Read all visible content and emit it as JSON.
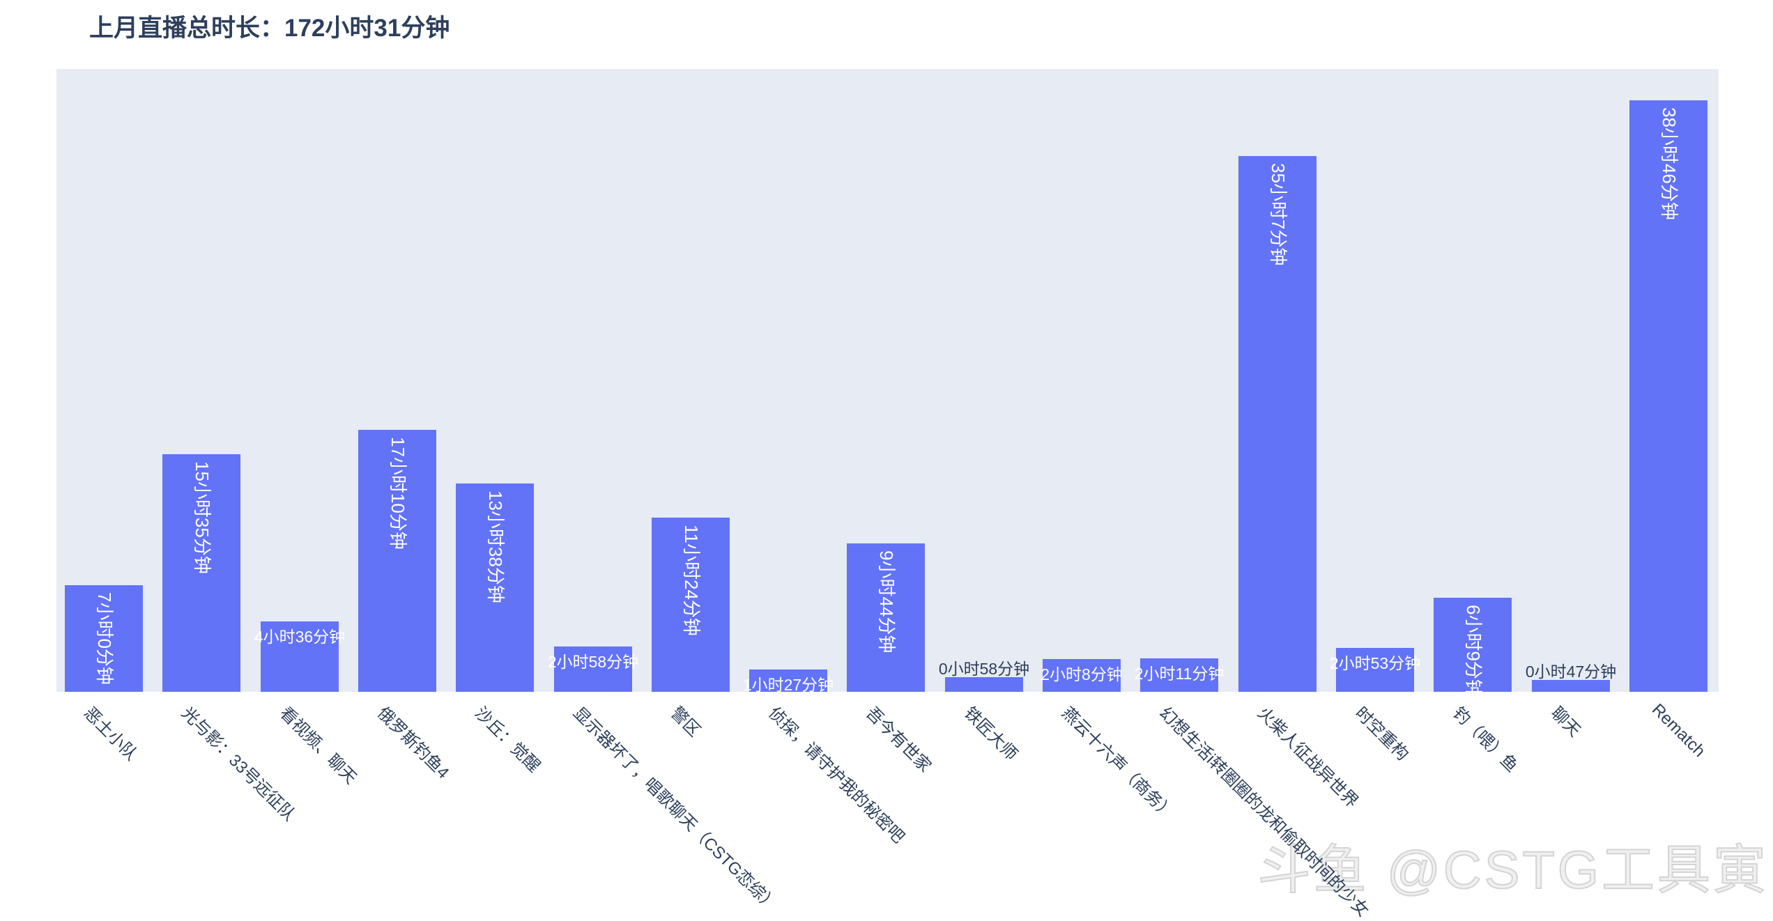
{
  "chart_data": {
    "type": "bar",
    "title": "上月直播总时长：172小时31分钟",
    "categories": [
      "恶土小队",
      "光与影：33号远征队",
      "看视频、聊天",
      "俄罗斯钓鱼4",
      "沙丘：觉醒",
      "显示器坏了，唱歌聊天（CSTG恋综）",
      "警区",
      "侦探，请守护我的秘密吧",
      "吾今有世家",
      "铁匠大师",
      "燕云十六声（商务）",
      "幻想生活i转圈圈的龙和偷取时间的少女",
      "火柴人征战异世界",
      "时空重构",
      "钓（喂）鱼",
      "聊天",
      "Rematch"
    ],
    "values": [
      7.0,
      15.583,
      4.6,
      17.167,
      13.633,
      2.967,
      11.4,
      1.45,
      9.733,
      0.967,
      2.133,
      2.183,
      35.117,
      2.883,
      6.15,
      0.783,
      38.767
    ],
    "value_labels": [
      "7小时0分钟",
      "15小时35分钟",
      "4小时36分钟",
      "17小时10分钟",
      "13小时38分钟",
      "2小时58分钟",
      "11小时24分钟",
      "1小时27分钟",
      "9小时44分钟",
      "0小时58分钟",
      "2小时8分钟",
      "2小时11分钟",
      "35小时7分钟",
      "2小时53分钟",
      "6小时9分钟",
      "0小时47分钟",
      "38小时46分钟"
    ],
    "label_placement": [
      "vertical",
      "vertical",
      "inside",
      "vertical",
      "vertical",
      "inside",
      "vertical",
      "inside",
      "vertical",
      "above",
      "inside",
      "inside",
      "vertical",
      "inside",
      "vertical",
      "above",
      "vertical"
    ],
    "unit": "hours",
    "xlabel": "",
    "ylabel": "",
    "ylim": [
      0,
      40.8
    ],
    "grid": false,
    "legend": null,
    "bar_color": "#6273f7",
    "plot_bg": "#e7ebf4",
    "text_color": "#2d3f5c"
  },
  "watermark": "斗鱼 @CSTG工具寅"
}
